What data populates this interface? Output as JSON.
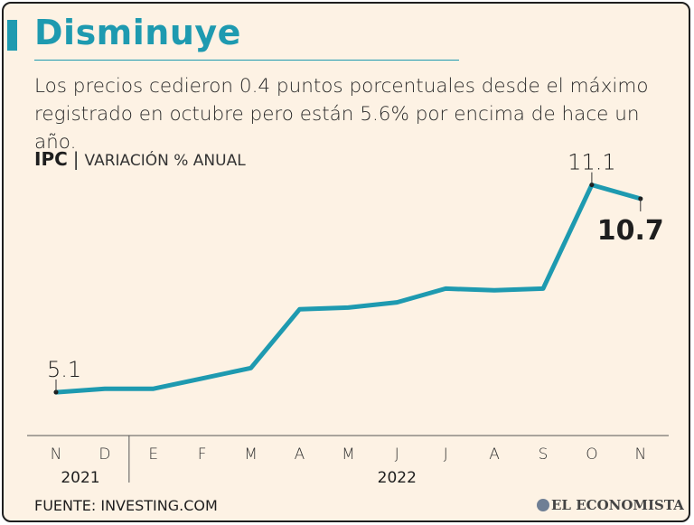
{
  "title": "Disminuye",
  "subtitle": "Los precios cedieron 0.4 puntos porcentuales desde el máximo registrado en octubre pero están 5.6% por encima de hace un año.",
  "metric": {
    "name": "IPC",
    "separator": "|",
    "description": "VARIACIÓN % ANUAL"
  },
  "footer": {
    "source": "FUENTE: INVESTING.COM",
    "brand": "EL ECONOMISTA"
  },
  "colors": {
    "accent": "#1e9ab0",
    "background": "#fdf2e4",
    "text": "#1e1e1e"
  },
  "chart_data": {
    "type": "line",
    "x": [
      "N",
      "D",
      "E",
      "F",
      "M",
      "A",
      "M",
      "J",
      "J",
      "A",
      "S",
      "O",
      "N"
    ],
    "year_labels": [
      {
        "label": "2021",
        "from_index": 0,
        "to_index": 1
      },
      {
        "label": "2022",
        "from_index": 2,
        "to_index": 12
      }
    ],
    "series": [
      {
        "values": [
          5.1,
          5.2,
          5.2,
          5.5,
          5.8,
          7.5,
          7.55,
          7.7,
          8.1,
          8.05,
          8.1,
          11.1,
          10.7
        ]
      }
    ],
    "ylim": [
      4.5,
      11.3
    ],
    "annotations": [
      {
        "index": 0,
        "text": "5.1",
        "bold": false
      },
      {
        "index": 11,
        "text": "11.1",
        "bold": false
      },
      {
        "index": 12,
        "text": "10.7",
        "bold": true
      }
    ],
    "grid": false,
    "legend": "none"
  }
}
